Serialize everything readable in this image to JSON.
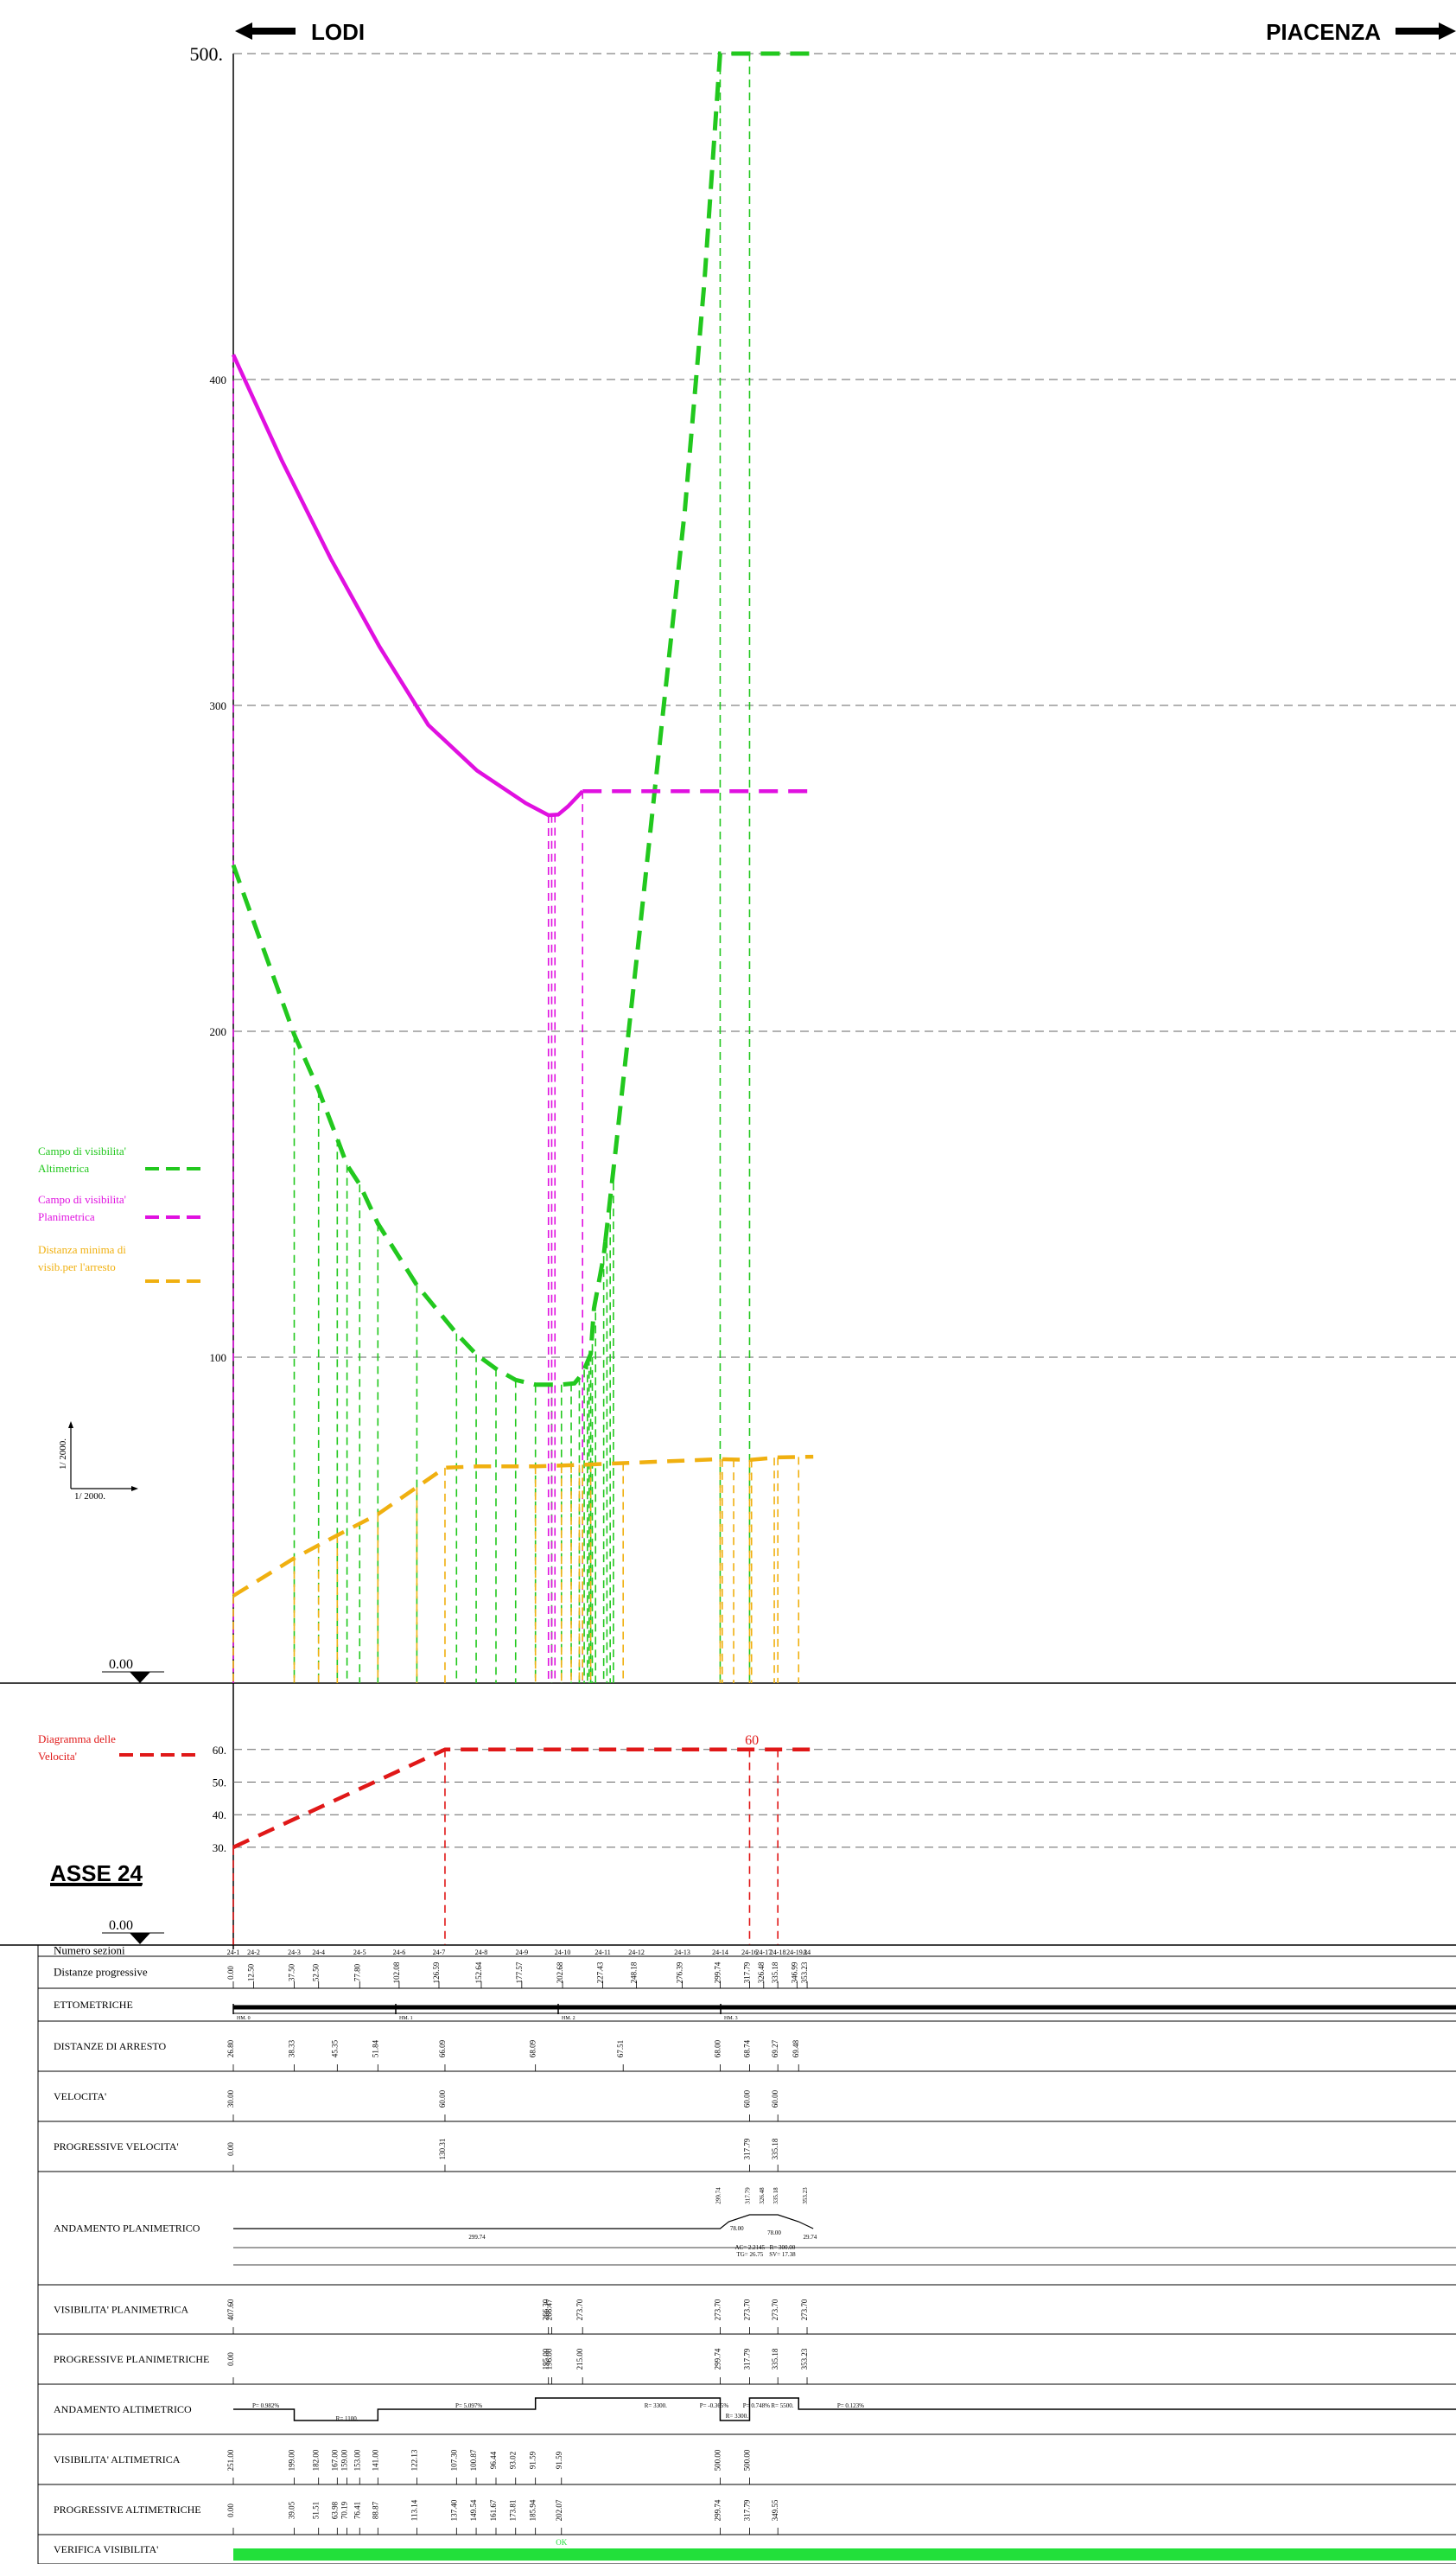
{
  "header": {
    "left_dir": "LODI",
    "right_dir": "PIACENZA",
    "top_value": "500.",
    "y_major_labels": [
      "400",
      "300",
      "200",
      "100"
    ]
  },
  "legend": {
    "alt_line1": "Campo di visibilita'",
    "alt_line2": "Altimetrica",
    "plan_line1": "Campo di visibilita'",
    "plan_line2": "Planimetrica",
    "dist_line1": "Distanza minima di",
    "dist_line2": "visib.per l'arresto",
    "speed_line1": "Diagramma delle",
    "speed_line2": "Velocita'"
  },
  "scale": {
    "vertical": "1/ 2000.",
    "horizontal": "1/ 2000."
  },
  "datum": {
    "upper": "0.00",
    "lower": "0.00"
  },
  "speed": {
    "labels": [
      "60.",
      "50.",
      "40.",
      "30."
    ],
    "marker": "60"
  },
  "asse_title": "ASSE 24",
  "table": {
    "rows": [
      "Numero sezioni",
      "Distanze progressive",
      "ETTOMETRICHE",
      "DISTANZE DI ARRESTO",
      "VELOCITA'",
      "PROGRESSIVE VELOCITA'",
      "ANDAMENTO PLANIMETRICO",
      "VISIBILITA' PLANIMETRICA",
      "PROGRESSIVE PLANIMETRICHE",
      "ANDAMENTO ALTIMETRICO",
      "VISIBILITA' ALTIMETRICA",
      "PROGRESSIVE ALTIMETRICHE",
      "VERIFICA VISIBILITA'"
    ],
    "sections": [
      "24-1",
      "24-2",
      "24-3",
      "24-4",
      "24-5",
      "24-6",
      "24-7",
      "24-8",
      "24-9",
      "24-10",
      "24-11",
      "24-12",
      "24-13",
      "24-14",
      "24-16",
      "24-17",
      "24-18",
      "24-19A",
      "24"
    ],
    "distances": [
      "0.00",
      "12.50",
      "37.50",
      "52.50",
      "77.80",
      "102.08",
      "126.59",
      "152.64",
      "177.57",
      "202.68",
      "227.43",
      "248.18",
      "276.39",
      "299.74",
      "317.79",
      "326.48",
      "335.18",
      "346.99",
      "353.23"
    ],
    "hectometric": [
      "HM. 0",
      "HM. 1",
      "HM. 2",
      "HM. 3"
    ],
    "stop_distances": [
      "26.80",
      "38.33",
      "45.35",
      "51.84",
      "66.09",
      "68.09",
      "67.51",
      "68.00",
      "68.74",
      "69.27",
      "69.48"
    ],
    "speeds": [
      "30.00",
      "60.00",
      "60.00",
      "60.00"
    ],
    "speed_progressives": [
      "0.00",
      "130.31",
      "317.79",
      "335.18"
    ],
    "plan_labels": [
      "299.74",
      "78.00",
      "AC= 2.2145",
      "R= 300.00",
      "TG= 26.75",
      "SV= 17.38",
      "29.74",
      "78.00"
    ],
    "plan_visibility": [
      "407.60",
      "266.30",
      "266.47",
      "273.70",
      "273.70",
      "273.70",
      "273.70",
      "273.70"
    ],
    "plan_progressives": [
      "0.00",
      "195.00",
      "196.00",
      "215.00",
      "299.74",
      "317.79",
      "335.18",
      "353.23"
    ],
    "alt_labels": [
      "P= 0.982%",
      "R= 1100.",
      "P= 5.097%",
      "R= 3300.",
      "P= -0.365%",
      "R= 3300.",
      "P= 0.748%",
      "R= 5500.",
      "P= 0.123%"
    ],
    "alt_visibility": [
      "251.00",
      "199.00",
      "182.00",
      "167.00",
      "159.00",
      "153.00",
      "141.00",
      "122.13",
      "107.30",
      "100.87",
      "96.44",
      "93.02",
      "91.59",
      "91.59",
      "500.00",
      "500.00"
    ],
    "alt_progressives": [
      "0.00",
      "39.05",
      "51.51",
      "63.98",
      "70.19",
      "76.41",
      "88.87",
      "113.14",
      "137.40",
      "149.54",
      "161.67",
      "173.81",
      "185.94",
      "202.07",
      "299.74",
      "317.79",
      "349.55"
    ],
    "check": "OK"
  },
  "colors": {
    "altimetric": "#22c81e",
    "planimetric": "#e010e0",
    "stop": "#f0b010",
    "speed": "#e01818",
    "check_bar": "#22e03a"
  },
  "diagram_data": {
    "x_max_station": 357,
    "altimetric_curve": [
      [
        0,
        251
      ],
      [
        37.5,
        199
      ],
      [
        52.5,
        182
      ],
      [
        64,
        167
      ],
      [
        70,
        159
      ],
      [
        77.8,
        153
      ],
      [
        89,
        141
      ],
      [
        113,
        122.13
      ],
      [
        137.4,
        107.3
      ],
      [
        149.5,
        100.87
      ],
      [
        161.7,
        96.44
      ],
      [
        173.8,
        93.02
      ],
      [
        186,
        91.59
      ],
      [
        202,
        91.59
      ],
      [
        210,
        92
      ],
      [
        215,
        95
      ],
      [
        220,
        101
      ],
      [
        222,
        115
      ],
      [
        228,
        131
      ],
      [
        235,
        162
      ],
      [
        250,
        230
      ],
      [
        265,
        300
      ],
      [
        278,
        360
      ],
      [
        290,
        430
      ],
      [
        299.7,
        500
      ],
      [
        357,
        500
      ]
    ],
    "altimetric_solid_until": 229,
    "altimetric_verticals": [
      37.5,
      52.5,
      64,
      70,
      77.8,
      89,
      113,
      137.4,
      149.5,
      161.7,
      173.8,
      186,
      196,
      202,
      208,
      213,
      216,
      218,
      219,
      220,
      221,
      223,
      228,
      230,
      232,
      234,
      299.7,
      317.8
    ],
    "planimetric_curve": [
      [
        0,
        407.6
      ],
      [
        30,
        375
      ],
      [
        60,
        345
      ],
      [
        90,
        318
      ],
      [
        120,
        294
      ],
      [
        150,
        280
      ],
      [
        180,
        270
      ],
      [
        194,
        266.3
      ],
      [
        200,
        266.5
      ],
      [
        206,
        269
      ],
      [
        215,
        273.7
      ],
      [
        357,
        273.7
      ]
    ],
    "planimetric_solid_until": 215,
    "planimetric_verticals": [
      0,
      194,
      196,
      198,
      215
    ],
    "stop_curve": [
      [
        0,
        26.8
      ],
      [
        37.5,
        38.33
      ],
      [
        64,
        45.35
      ],
      [
        89,
        51.84
      ],
      [
        130.3,
        66.09
      ],
      [
        150,
        66.5
      ],
      [
        185.9,
        66.5
      ],
      [
        215,
        67
      ],
      [
        240,
        67.51
      ],
      [
        299.7,
        68.74
      ],
      [
        317.8,
        68.5
      ],
      [
        335.2,
        69.27
      ],
      [
        357,
        69.48
      ]
    ],
    "stop_verticals": [
      0,
      37.5,
      52.5,
      64,
      89,
      113,
      130.3,
      186,
      202,
      208,
      213,
      215,
      220,
      240,
      299.7,
      301,
      308,
      317.8,
      319,
      333,
      335.2,
      348
    ],
    "speed_curve": [
      [
        0,
        30
      ],
      [
        130.3,
        60
      ],
      [
        357,
        60
      ]
    ],
    "speed_verticals": [
      0,
      130.3,
      317.8,
      335.2
    ],
    "plan_steps": [
      [
        0,
        0
      ],
      [
        299.7,
        0
      ],
      [
        305,
        1
      ],
      [
        317.8,
        2
      ],
      [
        335.2,
        2
      ],
      [
        348,
        1
      ],
      [
        357,
        0
      ]
    ],
    "alt_steps": [
      [
        0,
        0
      ],
      [
        37.5,
        -1
      ],
      [
        89,
        0
      ],
      [
        186,
        1
      ],
      [
        299.7,
        -1
      ],
      [
        317.8,
        1
      ],
      [
        348,
        0
      ]
    ],
    "ettom_split": [
      0,
      100,
      200,
      300
    ]
  }
}
